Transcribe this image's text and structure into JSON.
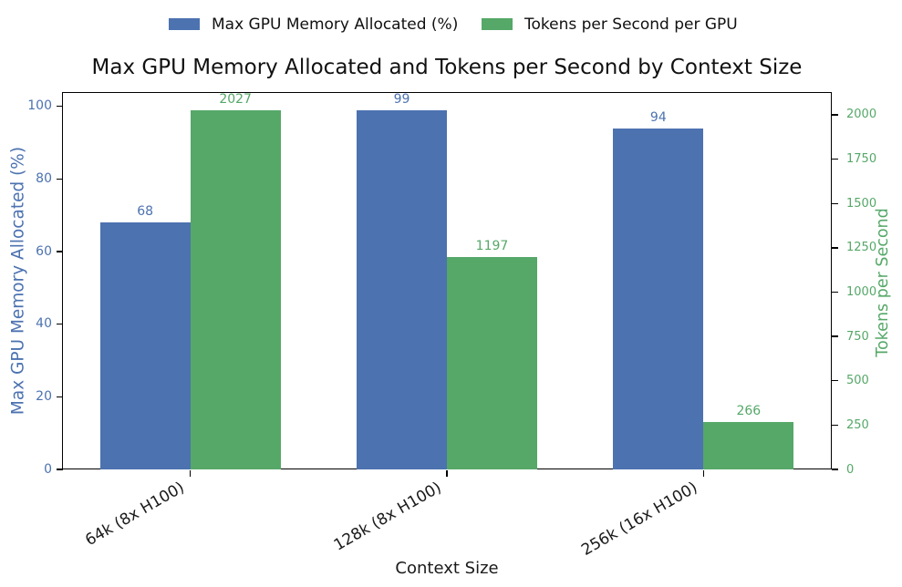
{
  "title": "Max GPU Memory Allocated and Tokens per Second by Context Size",
  "xlabel": "Context Size",
  "chart_data": {
    "type": "bar",
    "categories": [
      "64k (8x H100)",
      "128k (8x H100)",
      "256k (16x H100)"
    ],
    "series": [
      {
        "name": "Max GPU Memory Allocated (%)",
        "axis": "left",
        "color": "#4C72B0",
        "values": [
          68,
          99,
          94
        ]
      },
      {
        "name": "Tokens per Second per GPU",
        "axis": "right",
        "color": "#55A868",
        "values": [
          2027,
          1197,
          266
        ]
      }
    ],
    "ylabel_left": "Max GPU Memory Allocated (%)",
    "ylabel_right": "Tokens per Second",
    "yticks_left": [
      0,
      20,
      40,
      60,
      80,
      100
    ],
    "yticks_right": [
      0,
      250,
      500,
      750,
      1000,
      1250,
      1500,
      1750,
      2000
    ],
    "ylim_left": [
      0,
      103.95
    ],
    "ylim_right": [
      0,
      2128.35
    ],
    "axis_color_left": "#4C72B0",
    "axis_color_right": "#55A868",
    "legend_position": "upper center",
    "grid": false,
    "bar_labels": true
  }
}
